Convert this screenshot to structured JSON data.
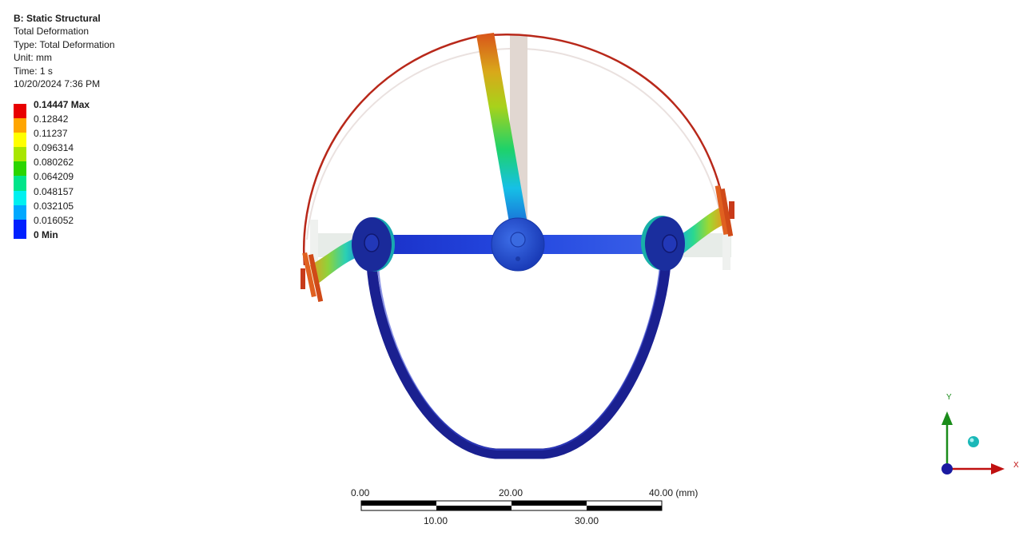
{
  "info": {
    "title": "B: Static Structural",
    "result": "Total Deformation",
    "type": "Type: Total Deformation",
    "unit": "Unit: mm",
    "time": "Time: 1 s",
    "date": "10/20/2024 7:36 PM"
  },
  "legend": {
    "items": [
      {
        "label": "0.14447 Max",
        "color": "#e80000",
        "bold": true
      },
      {
        "label": "0.12842",
        "color": "#ffa500",
        "bold": false
      },
      {
        "label": "0.11237",
        "color": "#ffff00",
        "bold": false
      },
      {
        "label": "0.096314",
        "color": "#a8e600",
        "bold": false
      },
      {
        "label": "0.080262",
        "color": "#2bd500",
        "bold": false
      },
      {
        "label": "0.064209",
        "color": "#00e58a",
        "bold": false
      },
      {
        "label": "0.048157",
        "color": "#00f0f0",
        "bold": false
      },
      {
        "label": "0.032105",
        "color": "#00a8ff",
        "bold": false
      },
      {
        "label": "0.016052",
        "color": "#0020ff",
        "bold": false
      },
      {
        "label": "0 Min",
        "color": "#0020ff",
        "bold": true
      }
    ]
  },
  "scale": {
    "top_labels": [
      "0.00",
      "20.00",
      "40.00 (mm)"
    ],
    "bottom_labels": [
      "10.00",
      "30.00"
    ]
  },
  "triad": {
    "y_label": "Y",
    "x_label": "X",
    "y_color": "#1a8c1a",
    "x_color": "#c01010",
    "z_color": "#1a1aa0"
  }
}
